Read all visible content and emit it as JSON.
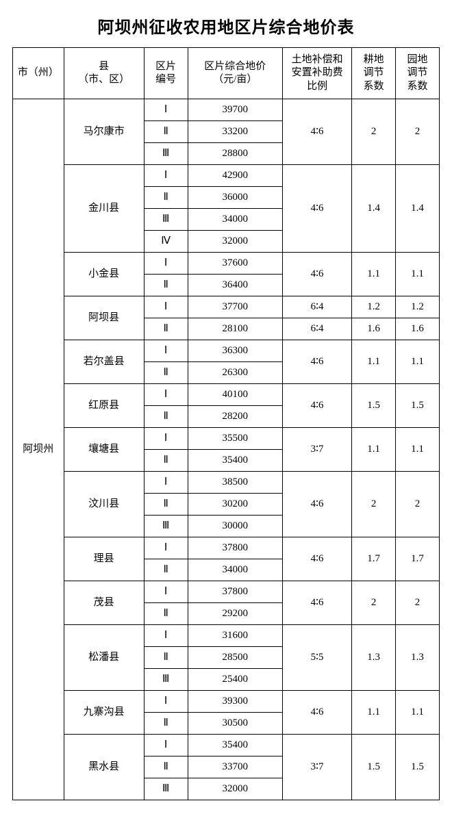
{
  "title": "阿坝州征收农用地区片综合地价表",
  "headers": {
    "city": "市（州）",
    "county": "县\n（市、区）",
    "zone": "区片\n编号",
    "price": "区片综合地价\n（元/亩）",
    "ratio": "土地补偿和\n安置补助费\n比例",
    "coef1": "耕地\n调节\n系数",
    "coef2": "园地\n调节\n系数"
  },
  "city_label": "阿坝州",
  "counties": [
    {
      "name": "马尔康市",
      "ratio": "4∶6",
      "coef1": "2",
      "coef2": "2",
      "rows": [
        [
          "Ⅰ",
          "39700"
        ],
        [
          "Ⅱ",
          "33200"
        ],
        [
          "Ⅲ",
          "28800"
        ]
      ]
    },
    {
      "name": "金川县",
      "ratio": "4∶6",
      "coef1": "1.4",
      "coef2": "1.4",
      "rows": [
        [
          "Ⅰ",
          "42900"
        ],
        [
          "Ⅱ",
          "36000"
        ],
        [
          "Ⅲ",
          "34000"
        ],
        [
          "Ⅳ",
          "32000"
        ]
      ]
    },
    {
      "name": "小金县",
      "ratio": "4∶6",
      "coef1": "1.1",
      "coef2": "1.1",
      "rows": [
        [
          "Ⅰ",
          "37600"
        ],
        [
          "Ⅱ",
          "36400"
        ]
      ]
    },
    {
      "name": "阿坝县",
      "per_row_ratio": true,
      "rows": [
        [
          "Ⅰ",
          "37700",
          "6∶4",
          "1.2",
          "1.2"
        ],
        [
          "Ⅱ",
          "28100",
          "6∶4",
          "1.6",
          "1.6"
        ]
      ]
    },
    {
      "name": "若尔盖县",
      "ratio": "4∶6",
      "coef1": "1.1",
      "coef2": "1.1",
      "rows": [
        [
          "Ⅰ",
          "36300"
        ],
        [
          "Ⅱ",
          "26300"
        ]
      ]
    },
    {
      "name": "红原县",
      "ratio": "4∶6",
      "coef1": "1.5",
      "coef2": "1.5",
      "rows": [
        [
          "Ⅰ",
          "40100"
        ],
        [
          "Ⅱ",
          "28200"
        ]
      ]
    },
    {
      "name": "壤塘县",
      "ratio": "3∶7",
      "coef1": "1.1",
      "coef2": "1.1",
      "rows": [
        [
          "Ⅰ",
          "35500"
        ],
        [
          "Ⅱ",
          "35400"
        ]
      ]
    },
    {
      "name": "汶川县",
      "ratio": "4∶6",
      "coef1": "2",
      "coef2": "2",
      "rows": [
        [
          "Ⅰ",
          "38500"
        ],
        [
          "Ⅱ",
          "30200"
        ],
        [
          "Ⅲ",
          "30000"
        ]
      ]
    },
    {
      "name": "理县",
      "ratio": "4∶6",
      "coef1": "1.7",
      "coef2": "1.7",
      "rows": [
        [
          "Ⅰ",
          "37800"
        ],
        [
          "Ⅱ",
          "34000"
        ]
      ]
    },
    {
      "name": "茂县",
      "ratio": "4∶6",
      "coef1": "2",
      "coef2": "2",
      "rows": [
        [
          "Ⅰ",
          "37800"
        ],
        [
          "Ⅱ",
          "29200"
        ]
      ]
    },
    {
      "name": "松潘县",
      "ratio": "5∶5",
      "coef1": "1.3",
      "coef2": "1.3",
      "rows": [
        [
          "Ⅰ",
          "31600"
        ],
        [
          "Ⅱ",
          "28500"
        ],
        [
          "Ⅲ",
          "25400"
        ]
      ]
    },
    {
      "name": "九寨沟县",
      "ratio": "4∶6",
      "coef1": "1.1",
      "coef2": "1.1",
      "rows": [
        [
          "Ⅰ",
          "39300"
        ],
        [
          "Ⅱ",
          "30500"
        ]
      ]
    },
    {
      "name": "黑水县",
      "ratio": "3∶7",
      "coef1": "1.5",
      "coef2": "1.5",
      "rows": [
        [
          "Ⅰ",
          "35400"
        ],
        [
          "Ⅱ",
          "33700"
        ],
        [
          "Ⅲ",
          "32000"
        ]
      ]
    }
  ]
}
